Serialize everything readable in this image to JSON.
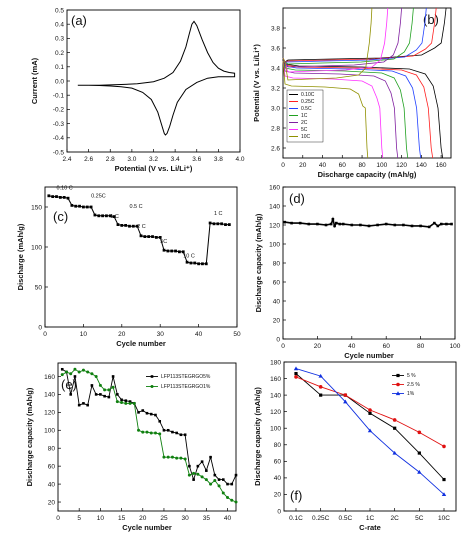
{
  "chart_data": [
    {
      "panel": "(a)",
      "type": "line",
      "xlabel": "Potential (V vs. Li/Li⁺)",
      "ylabel": "Current (mA)",
      "xlim": [
        2.4,
        4.0
      ],
      "ylim": [
        -0.5,
        0.5
      ],
      "xticks": [
        "2.4",
        "2.6",
        "2.8",
        "3.0",
        "3.2",
        "3.4",
        "3.6",
        "3.8",
        "4.0"
      ],
      "yticks": [
        "-0.5",
        "-0.4",
        "-0.3",
        "-0.2",
        "-0.1",
        "0.0",
        "0.1",
        "0.2",
        "0.3",
        "0.4",
        "0.5"
      ],
      "series": [
        {
          "color": "#000000",
          "x": [
            2.5,
            2.7,
            2.9,
            3.05,
            3.2,
            3.3,
            3.38,
            3.45,
            3.5,
            3.53,
            3.555,
            3.575,
            3.6,
            3.65,
            3.7,
            3.75,
            3.8,
            3.85,
            3.9,
            3.95,
            3.95,
            3.9,
            3.8,
            3.7,
            3.6,
            3.5,
            3.42,
            3.38,
            3.35,
            3.325,
            3.31,
            3.3,
            3.28,
            3.24,
            3.18,
            3.1,
            3.0,
            2.9,
            2.8,
            2.7,
            2.6,
            2.5
          ],
          "y": [
            -0.03,
            -0.03,
            -0.025,
            -0.02,
            -0.005,
            0.02,
            0.06,
            0.14,
            0.24,
            0.33,
            0.4,
            0.42,
            0.39,
            0.29,
            0.2,
            0.13,
            0.09,
            0.07,
            0.06,
            0.055,
            0.03,
            0.03,
            0.03,
            0.02,
            -0.01,
            -0.06,
            -0.15,
            -0.24,
            -0.32,
            -0.37,
            -0.38,
            -0.37,
            -0.32,
            -0.22,
            -0.13,
            -0.08,
            -0.05,
            -0.04,
            -0.035,
            -0.032,
            -0.03,
            -0.03
          ]
        }
      ]
    },
    {
      "panel": "(b)",
      "type": "line",
      "xlabel": "Discharge capacity (mAh/g)",
      "ylabel": "Potential (V vs. Li/Li⁺)",
      "xlim": [
        0,
        170
      ],
      "ylim": [
        2.5,
        4.0
      ],
      "xticks": [
        "0",
        "20",
        "40",
        "60",
        "80",
        "100",
        "120",
        "140",
        "160"
      ],
      "yticks": [
        "2.6",
        "2.8",
        "3.0",
        "3.2",
        "3.4",
        "3.6",
        "3.8"
      ],
      "legend_position": "inside-left",
      "series": [
        {
          "name": "0.10C",
          "color": "#000000",
          "charge_cap": 165,
          "plateau": 3.42,
          "discharge_cap": 160
        },
        {
          "name": "0.25C",
          "color": "#ff2020",
          "charge_cap": 155,
          "plateau": 3.41,
          "discharge_cap": 150
        },
        {
          "name": "0.5C",
          "color": "#2040ff",
          "charge_cap": 145,
          "plateau": 3.4,
          "discharge_cap": 138
        },
        {
          "name": "1C",
          "color": "#20a020",
          "charge_cap": 132,
          "plateau": 3.38,
          "discharge_cap": 125
        },
        {
          "name": "2C",
          "color": "#8020a0",
          "charge_cap": 120,
          "plateau": 3.35,
          "discharge_cap": 115
        },
        {
          "name": "5C",
          "color": "#ff30ff",
          "charge_cap": 106,
          "plateau": 3.3,
          "discharge_cap": 100
        },
        {
          "name": "10C",
          "color": "#909000",
          "charge_cap": 90,
          "plateau": 3.22,
          "discharge_cap": 85
        }
      ]
    },
    {
      "panel": "(c)",
      "type": "line",
      "xlabel": "Cycle number",
      "ylabel": "Discharge (mAh/g)",
      "xlim": [
        0,
        50
      ],
      "ylim": [
        0,
        175
      ],
      "xticks": [
        "0",
        "10",
        "20",
        "30",
        "40",
        "50"
      ],
      "yticks": [
        "0",
        "50",
        "100",
        "150"
      ],
      "annotations": [
        "0.10 C",
        "0.25C",
        "0.5 C",
        "1 C",
        "2 C",
        "5C",
        "10 C",
        "1 C"
      ],
      "series": [
        {
          "color": "#000000",
          "x": [
            1,
            2,
            3,
            4,
            5,
            6,
            7,
            8,
            9,
            10,
            11,
            12,
            13,
            14,
            15,
            16,
            17,
            18,
            19,
            20,
            21,
            22,
            23,
            24,
            25,
            26,
            27,
            28,
            29,
            30,
            31,
            32,
            33,
            34,
            35,
            36,
            37,
            38,
            39,
            40,
            41,
            42,
            43,
            44,
            45,
            46,
            47,
            48
          ],
          "y": [
            164,
            163,
            163,
            162,
            162,
            161,
            152,
            151,
            151,
            150,
            150,
            150,
            140,
            139,
            139,
            139,
            139,
            138,
            128,
            127,
            127,
            126,
            126,
            126,
            114,
            113,
            113,
            113,
            112,
            112,
            96,
            95,
            95,
            95,
            94,
            94,
            81,
            80,
            80,
            79,
            79,
            79,
            130,
            129,
            129,
            129,
            128,
            128
          ]
        }
      ]
    },
    {
      "panel": "(d)",
      "type": "line",
      "xlabel": "Cycle number",
      "ylabel": "Discharge capacity (mAh/g)",
      "xlim": [
        0,
        100
      ],
      "ylim": [
        0,
        160
      ],
      "xticks": [
        "0",
        "20",
        "40",
        "60",
        "80",
        "100"
      ],
      "yticks": [
        "0",
        "20",
        "40",
        "60",
        "80",
        "100",
        "120",
        "140",
        "160"
      ],
      "series": [
        {
          "color": "#000000",
          "x": [
            1,
            5,
            10,
            15,
            20,
            25,
            28,
            29,
            30,
            31,
            33,
            35,
            40,
            45,
            50,
            55,
            60,
            65,
            70,
            75,
            80,
            85,
            88,
            90,
            92,
            95,
            98
          ],
          "y": [
            123,
            122,
            122,
            121,
            121,
            120,
            121,
            126,
            119,
            122,
            121,
            121,
            120,
            120,
            119,
            120,
            121,
            120,
            120,
            119,
            119,
            118,
            122,
            119,
            121,
            121,
            121
          ]
        }
      ]
    },
    {
      "panel": "(e)",
      "type": "line",
      "xlabel": "Cycle number",
      "ylabel": "Discharge capacity (mAh/g)",
      "xlim": [
        0,
        42
      ],
      "ylim": [
        10,
        175
      ],
      "xticks": [
        "0",
        "5",
        "10",
        "15",
        "20",
        "25",
        "30",
        "35",
        "40"
      ],
      "yticks": [
        "20",
        "40",
        "60",
        "80",
        "100",
        "120",
        "140",
        "160"
      ],
      "legend_position": "top-right",
      "series": [
        {
          "name": "LFP113STEGRGO5%",
          "color": "#000000",
          "x": [
            1,
            2,
            3,
            4,
            5,
            6,
            7,
            8,
            9,
            10,
            11,
            12,
            13,
            14,
            15,
            16,
            17,
            18,
            19,
            20,
            21,
            22,
            23,
            24,
            25,
            26,
            27,
            28,
            29,
            30,
            31,
            32,
            33,
            34,
            35,
            36,
            37,
            38,
            39,
            40,
            41,
            42
          ],
          "y": [
            168,
            165,
            140,
            160,
            128,
            130,
            128,
            150,
            140,
            140,
            138,
            137,
            160,
            140,
            134,
            133,
            132,
            130,
            120,
            122,
            119,
            118,
            117,
            110,
            100,
            100,
            98,
            97,
            95,
            95,
            60,
            45,
            60,
            65,
            55,
            70,
            50,
            45,
            45,
            40,
            40,
            50
          ]
        },
        {
          "name": "LFP113STEGRGO1%",
          "color": "#108010",
          "x": [
            1,
            2,
            3,
            4,
            5,
            6,
            7,
            8,
            9,
            10,
            11,
            12,
            13,
            14,
            15,
            16,
            17,
            18,
            19,
            20,
            21,
            22,
            23,
            24,
            25,
            26,
            27,
            28,
            29,
            30,
            31,
            32,
            33,
            34,
            35,
            36,
            37,
            38,
            39,
            40,
            41,
            42
          ],
          "y": [
            162,
            165,
            163,
            168,
            165,
            167,
            165,
            163,
            160,
            150,
            145,
            145,
            148,
            132,
            131,
            130,
            130,
            130,
            100,
            98,
            98,
            97,
            97,
            96,
            70,
            70,
            70,
            69,
            69,
            68,
            50,
            52,
            51,
            48,
            45,
            40,
            44,
            38,
            30,
            25,
            22,
            20
          ]
        }
      ]
    },
    {
      "panel": "(f)",
      "type": "line",
      "xlabel": "C-rate",
      "ylabel": "Discharge capacity (mAh/g)",
      "categories": [
        "0.1C",
        "0.25C",
        "0.5C",
        "1C",
        "2C",
        "5C",
        "10C"
      ],
      "ylim": [
        0,
        180
      ],
      "yticks": [
        "0",
        "20",
        "40",
        "60",
        "80",
        "100",
        "120",
        "140",
        "160",
        "180"
      ],
      "legend_position": "top-right",
      "series": [
        {
          "name": "5 %",
          "color": "#000000",
          "marker": "square",
          "values": [
            166,
            140,
            140,
            118,
            100,
            70,
            38
          ]
        },
        {
          "name": "2.5 %",
          "color": "#e01010",
          "marker": "circle",
          "values": [
            162,
            150,
            140,
            122,
            110,
            95,
            78
          ]
        },
        {
          "name": "1%",
          "color": "#1030e0",
          "marker": "triangle",
          "values": [
            172,
            163,
            132,
            97,
            70,
            47,
            20
          ]
        }
      ]
    }
  ]
}
